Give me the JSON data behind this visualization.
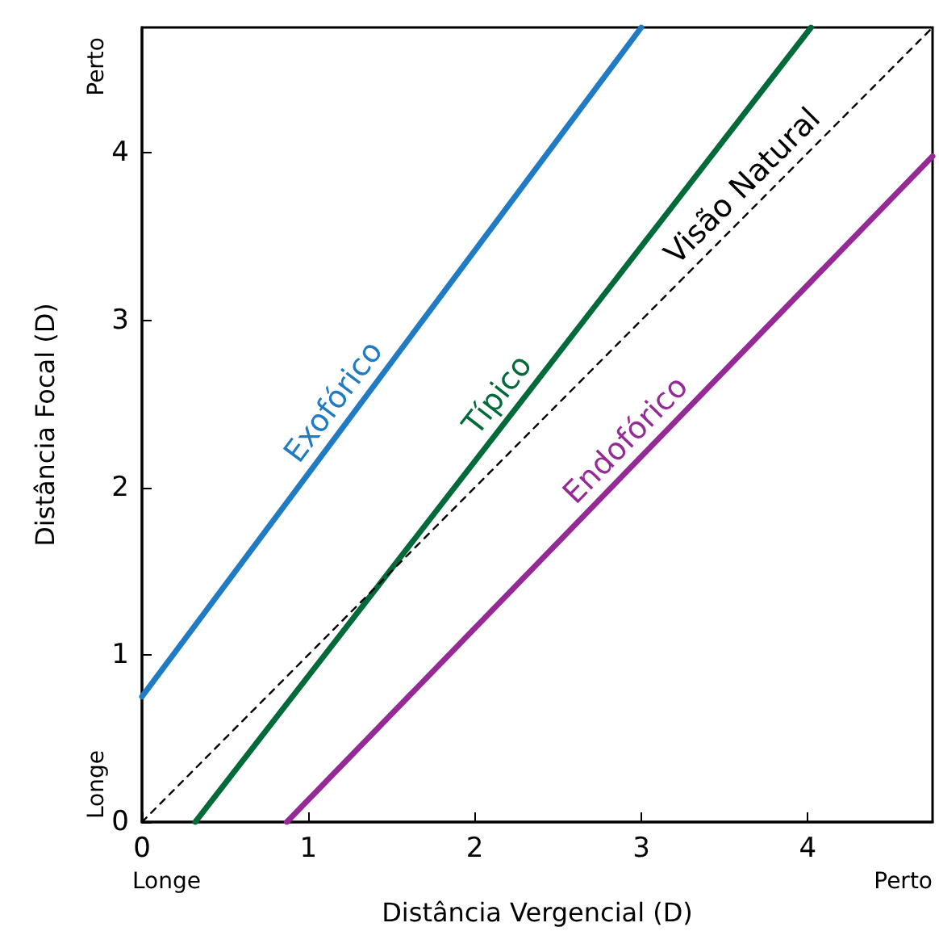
{
  "chart_data": {
    "type": "line",
    "xlabel": "Distância Vergencial (D)",
    "ylabel": "Distância Focal (D)",
    "xlim": [
      0,
      4.75
    ],
    "ylim": [
      0,
      4.75
    ],
    "xticks": [
      0,
      1,
      2,
      3,
      4
    ],
    "yticks": [
      0,
      1,
      2,
      3,
      4
    ],
    "grid": false,
    "legend": false,
    "marker": "none",
    "series": [
      {
        "name": "Exofórico",
        "color": "#1f7bc4",
        "x": [
          0,
          3.0
        ],
        "values": [
          0.75,
          4.75
        ]
      },
      {
        "name": "Típico",
        "color": "#006a38",
        "x": [
          0.32,
          4.02
        ],
        "values": [
          0,
          4.75
        ]
      },
      {
        "name": "Endofórico",
        "color": "#952a96",
        "x": [
          0.87,
          4.75
        ],
        "values": [
          0,
          3.98
        ]
      },
      {
        "name": "Visão Natural",
        "color": "#000000",
        "x": [
          0,
          4.75
        ],
        "values": [
          0,
          4.75
        ],
        "line_style": "dashed"
      }
    ],
    "annotations": [
      "Perto",
      "Longe",
      "Longe",
      "Perto"
    ]
  }
}
